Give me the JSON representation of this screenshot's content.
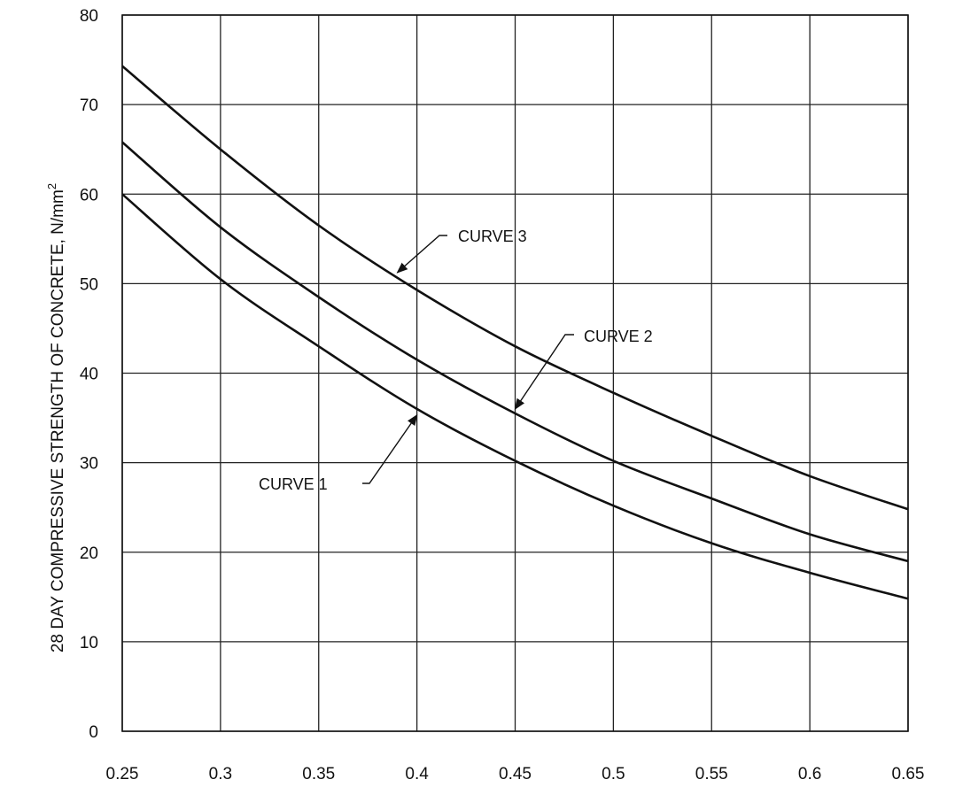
{
  "chart_data": {
    "type": "line",
    "title": "",
    "xlabel": "",
    "ylabel": "28 DAY COMPRESSIVE STRENGTH OF CONCRETE,  N/mm",
    "ylabel_superscript": "2",
    "xlim": [
      0.25,
      0.65
    ],
    "ylim": [
      0,
      80
    ],
    "x_ticks": [
      0.25,
      0.3,
      0.35,
      0.4,
      0.45,
      0.5,
      0.55,
      0.6,
      0.65
    ],
    "x_tick_labels": [
      "0.25",
      "0.3",
      "0.35",
      "0.4",
      "0.45",
      "0.5",
      "0.55",
      "0.6",
      "0.65"
    ],
    "y_ticks": [
      0,
      10,
      20,
      30,
      40,
      50,
      60,
      70,
      80
    ],
    "y_tick_labels": [
      "0",
      "10",
      "20",
      "30",
      "40",
      "50",
      "60",
      "70",
      "80"
    ],
    "grid": true,
    "legend": "none",
    "x": [
      0.25,
      0.3,
      0.35,
      0.4,
      0.45,
      0.5,
      0.55,
      0.6,
      0.65
    ],
    "series": [
      {
        "name": "CURVE  1",
        "values": [
          60,
          50.5,
          43,
          36,
          30.2,
          25.2,
          21,
          17.7,
          14.8
        ]
      },
      {
        "name": "CURVE 2",
        "values": [
          65.8,
          56.3,
          48.5,
          41.5,
          35.5,
          30.2,
          26,
          22,
          19
        ]
      },
      {
        "name": "CURVE 3",
        "values": [
          74.3,
          65,
          56.5,
          49.3,
          43,
          37.8,
          33,
          28.5,
          24.8
        ]
      }
    ],
    "annotations": [
      {
        "text": "CURVE 3",
        "series": 2,
        "x": 0.39
      },
      {
        "text": "CURVE 2",
        "series": 1,
        "x": 0.45
      },
      {
        "text": "CURVE  1",
        "series": 0,
        "x": 0.4
      }
    ]
  }
}
